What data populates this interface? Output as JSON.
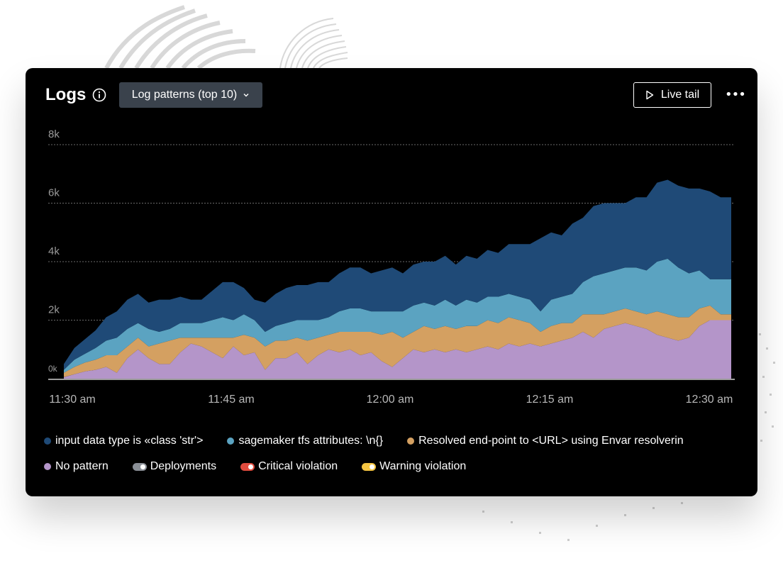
{
  "header": {
    "title": "Logs",
    "dropdown_label": "Log patterns (top 10)",
    "live_tail_label": "Live tail",
    "more_label": "•••"
  },
  "colors": {
    "card_bg": "#000000",
    "input_data": "#1f4a77",
    "sagemaker": "#5ba3c1",
    "resolved": "#d4a061",
    "no_pattern": "#b495c9",
    "deployments": "#8a8f96",
    "critical": "#e04b3e",
    "warning": "#f5c542"
  },
  "chart_data": {
    "type": "area",
    "stacked": true,
    "x_ticks": [
      "11:30 am",
      "11:45 am",
      "12:00 am",
      "12:15 am",
      "12:30 am"
    ],
    "y_ticks": [
      "0k",
      "2k",
      "4k",
      "6k",
      "8k"
    ],
    "ylim": [
      0,
      8000
    ],
    "grid": true,
    "x_minutes": [
      1,
      2,
      3,
      4,
      5,
      6,
      7,
      8,
      9,
      10,
      11,
      12,
      13,
      14,
      15,
      16,
      17,
      18,
      19,
      20,
      21,
      22,
      23,
      24,
      25,
      26,
      27,
      28,
      29,
      30,
      31,
      32,
      33,
      34,
      35,
      36,
      37,
      38,
      39,
      40,
      41,
      42,
      43,
      44,
      45,
      46,
      47,
      48,
      49,
      50,
      51,
      52,
      53,
      54,
      55,
      56,
      57,
      58,
      59,
      60,
      61,
      62,
      63,
      64
    ],
    "series": [
      {
        "name": "No pattern",
        "color_key": "no_pattern",
        "values": [
          50,
          150,
          250,
          300,
          400,
          200,
          700,
          1000,
          700,
          500,
          500,
          900,
          1200,
          1100,
          900,
          700,
          1100,
          800,
          900,
          300,
          700,
          700,
          900,
          500,
          800,
          1000,
          900,
          1000,
          800,
          900,
          600,
          400,
          700,
          1000,
          900,
          1000,
          900,
          1000,
          900,
          1000,
          1100,
          1000,
          1200,
          1100,
          1200,
          1100,
          1200,
          1300,
          1400,
          1600,
          1400,
          1700,
          1800,
          1900,
          1800,
          1700,
          1500,
          1400,
          1300,
          1400,
          1800,
          2000,
          2000,
          2000
        ]
      },
      {
        "name": "Resolved end-point to <URL> using Envar resolverin",
        "color_key": "resolved",
        "values": [
          150,
          250,
          300,
          350,
          400,
          600,
          400,
          400,
          400,
          700,
          800,
          500,
          200,
          300,
          500,
          700,
          300,
          700,
          500,
          800,
          600,
          600,
          500,
          800,
          600,
          500,
          700,
          600,
          800,
          700,
          900,
          1200,
          700,
          600,
          900,
          700,
          900,
          700,
          900,
          800,
          900,
          900,
          900,
          900,
          700,
          500,
          600,
          600,
          500,
          600,
          800,
          500,
          500,
          500,
          500,
          500,
          800,
          800,
          800,
          700,
          600,
          500,
          200,
          200
        ]
      },
      {
        "name": "sagemaker tfs attributes: \\n{}",
        "color_key": "sagemaker",
        "values": [
          100,
          250,
          300,
          400,
          500,
          600,
          600,
          500,
          600,
          400,
          400,
          500,
          500,
          500,
          600,
          700,
          600,
          700,
          600,
          500,
          500,
          600,
          600,
          700,
          600,
          600,
          700,
          800,
          800,
          700,
          800,
          700,
          900,
          900,
          800,
          800,
          900,
          800,
          900,
          800,
          800,
          900,
          800,
          800,
          800,
          700,
          900,
          900,
          1000,
          1100,
          1300,
          1400,
          1400,
          1400,
          1500,
          1500,
          1700,
          1900,
          1700,
          1500,
          1300,
          900,
          1200,
          1200
        ]
      },
      {
        "name": "input data type is «class 'str'>",
        "color_key": "input_data",
        "values": [
          200,
          400,
          500,
          600,
          800,
          900,
          1000,
          1000,
          900,
          1100,
          1000,
          900,
          800,
          800,
          1000,
          1200,
          1300,
          900,
          700,
          1000,
          1100,
          1200,
          1200,
          1200,
          1300,
          1200,
          1300,
          1400,
          1400,
          1300,
          1400,
          1500,
          1300,
          1400,
          1400,
          1500,
          1500,
          1400,
          1500,
          1500,
          1600,
          1500,
          1700,
          1800,
          1900,
          2500,
          2300,
          2100,
          2400,
          2200,
          2400,
          2400,
          2300,
          2200,
          2400,
          2500,
          2700,
          2700,
          2800,
          2900,
          2800,
          3000,
          2800,
          2800
        ]
      }
    ]
  },
  "legend": {
    "row1": [
      {
        "label": "input data type is «class 'str'>",
        "color_key": "input_data"
      },
      {
        "label": "sagemaker tfs attributes: \\n{}",
        "color_key": "sagemaker"
      },
      {
        "label": "Resolved end-point to <URL> using Envar resolverin",
        "color_key": "resolved"
      }
    ],
    "row2": [
      {
        "label": "No pattern",
        "color_key": "no_pattern"
      },
      {
        "label": "Deployments",
        "color_key": "deployments"
      },
      {
        "label": "Critical violation",
        "color_key": "critical"
      },
      {
        "label": "Warning violation",
        "color_key": "warning"
      }
    ]
  }
}
